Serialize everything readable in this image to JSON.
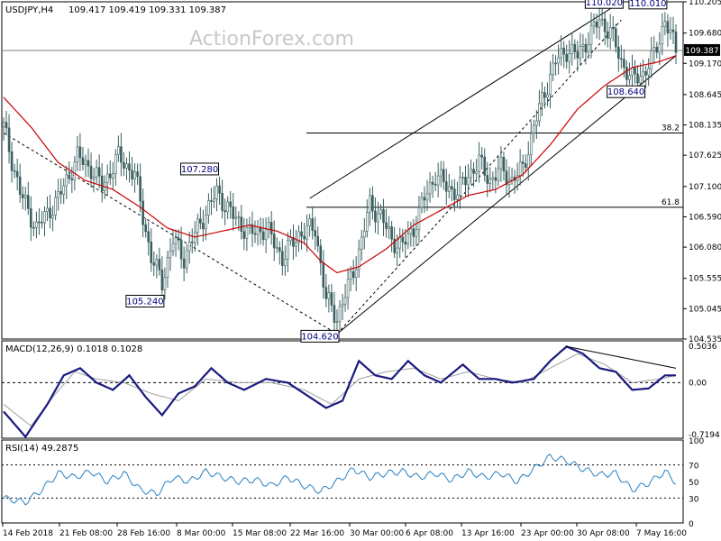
{
  "header": {
    "symbol": "USDJPY,H4",
    "ohlc": "109.417 109.419 109.331 109.387",
    "watermark": "ActionForex.com"
  },
  "chart_data": [
    {
      "type": "candlestick",
      "panel": "price",
      "y_ticks": [
        "110.205",
        "109.680",
        "109.170",
        "108.645",
        "108.135",
        "107.625",
        "107.100",
        "106.590",
        "106.080",
        "105.555",
        "105.045",
        "104.535"
      ],
      "ylim": [
        104.535,
        110.205
      ],
      "current_price": "109.387",
      "x_ticks": [
        "14 Feb 2018",
        "21 Feb 08:00",
        "28 Feb 16:00",
        "8 Mar 00:00",
        "15 Mar 08:00",
        "22 Mar 16:00",
        "30 Mar 00:00",
        "6 Apr 08:00",
        "13 Apr 16:00",
        "23 Apr 00:00",
        "30 Apr 08:00",
        "7 May 16:00"
      ],
      "price_labels": [
        {
          "text": "110.020",
          "value": 110.02
        },
        {
          "text": "110.010",
          "value": 110.01
        },
        {
          "text": "107.280",
          "value": 107.28
        },
        {
          "text": "105.240",
          "value": 105.24
        },
        {
          "text": "104.620",
          "value": 104.62
        },
        {
          "text": "108.640",
          "value": 108.64
        }
      ],
      "fib_levels": [
        {
          "label": "38.2",
          "value": 108.0
        },
        {
          "label": "61.8",
          "value": 106.75
        }
      ],
      "close_path": [
        [
          0,
          108.1
        ],
        [
          6,
          107.0
        ],
        [
          12,
          106.4
        ],
        [
          20,
          106.9
        ],
        [
          27,
          107.6
        ],
        [
          32,
          107.4
        ],
        [
          36,
          107.1
        ],
        [
          42,
          107.6
        ],
        [
          48,
          107.3
        ],
        [
          54,
          105.9
        ],
        [
          58,
          105.5
        ],
        [
          62,
          106.2
        ],
        [
          66,
          105.9
        ],
        [
          72,
          106.5
        ],
        [
          78,
          107.0
        ],
        [
          84,
          106.6
        ],
        [
          90,
          106.3
        ],
        [
          96,
          106.4
        ],
        [
          102,
          105.9
        ],
        [
          108,
          106.3
        ],
        [
          114,
          106.4
        ],
        [
          118,
          105.2
        ],
        [
          122,
          104.9
        ],
        [
          126,
          105.4
        ],
        [
          130,
          106.0
        ],
        [
          134,
          106.8
        ],
        [
          138,
          106.6
        ],
        [
          142,
          106.2
        ],
        [
          146,
          106.1
        ],
        [
          150,
          106.4
        ],
        [
          154,
          106.9
        ],
        [
          158,
          107.3
        ],
        [
          162,
          107.1
        ],
        [
          166,
          107.0
        ],
        [
          170,
          107.3
        ],
        [
          174,
          107.5
        ],
        [
          178,
          107.2
        ],
        [
          182,
          107.4
        ],
        [
          186,
          107.2
        ],
        [
          190,
          107.4
        ],
        [
          194,
          108.1
        ],
        [
          198,
          108.7
        ],
        [
          202,
          109.2
        ],
        [
          206,
          109.4
        ],
        [
          210,
          109.3
        ],
        [
          214,
          109.6
        ],
        [
          218,
          109.9
        ],
        [
          222,
          109.7
        ],
        [
          226,
          109.2
        ],
        [
          230,
          108.9
        ],
        [
          234,
          109.0
        ],
        [
          238,
          109.3
        ],
        [
          242,
          109.9
        ],
        [
          246,
          109.39
        ]
      ],
      "ma_path": [
        [
          0,
          108.6
        ],
        [
          10,
          108.1
        ],
        [
          20,
          107.5
        ],
        [
          30,
          107.2
        ],
        [
          40,
          107.05
        ],
        [
          50,
          106.75
        ],
        [
          60,
          106.4
        ],
        [
          70,
          106.25
        ],
        [
          80,
          106.35
        ],
        [
          90,
          106.45
        ],
        [
          100,
          106.35
        ],
        [
          110,
          106.15
        ],
        [
          116,
          105.85
        ],
        [
          122,
          105.65
        ],
        [
          130,
          105.75
        ],
        [
          140,
          106.05
        ],
        [
          150,
          106.45
        ],
        [
          160,
          106.7
        ],
        [
          170,
          106.95
        ],
        [
          180,
          107.05
        ],
        [
          190,
          107.3
        ],
        [
          200,
          107.8
        ],
        [
          210,
          108.4
        ],
        [
          220,
          108.8
        ],
        [
          230,
          109.1
        ],
        [
          240,
          109.2
        ],
        [
          246,
          109.3
        ]
      ]
    },
    {
      "type": "line",
      "panel": "macd",
      "label": "MACD(12,26,9) 0.1018 0.1028",
      "y_ticks": [
        "0.5036",
        "0.00",
        "-0.7194"
      ],
      "ylim": [
        -0.7194,
        0.5036
      ],
      "macd": [
        [
          0,
          -0.4
        ],
        [
          8,
          -0.75
        ],
        [
          16,
          -0.3
        ],
        [
          22,
          0.1
        ],
        [
          28,
          0.2
        ],
        [
          34,
          0.0
        ],
        [
          40,
          -0.1
        ],
        [
          46,
          0.1
        ],
        [
          52,
          -0.2
        ],
        [
          58,
          -0.45
        ],
        [
          64,
          -0.15
        ],
        [
          70,
          -0.05
        ],
        [
          76,
          0.2
        ],
        [
          82,
          0.0
        ],
        [
          88,
          -0.1
        ],
        [
          96,
          0.05
        ],
        [
          104,
          0.0
        ],
        [
          112,
          -0.2
        ],
        [
          118,
          -0.35
        ],
        [
          124,
          -0.25
        ],
        [
          130,
          0.3
        ],
        [
          136,
          0.1
        ],
        [
          142,
          0.05
        ],
        [
          148,
          0.3
        ],
        [
          154,
          0.1
        ],
        [
          160,
          0.0
        ],
        [
          168,
          0.25
        ],
        [
          174,
          0.05
        ],
        [
          180,
          0.05
        ],
        [
          186,
          0.0
        ],
        [
          194,
          0.05
        ],
        [
          200,
          0.3
        ],
        [
          206,
          0.5
        ],
        [
          212,
          0.4
        ],
        [
          218,
          0.2
        ],
        [
          224,
          0.15
        ],
        [
          230,
          -0.1
        ],
        [
          236,
          -0.08
        ],
        [
          242,
          0.1
        ],
        [
          246,
          0.1
        ]
      ],
      "signal": [
        [
          0,
          -0.3
        ],
        [
          10,
          -0.6
        ],
        [
          18,
          -0.2
        ],
        [
          26,
          0.15
        ],
        [
          34,
          0.05
        ],
        [
          44,
          0.0
        ],
        [
          54,
          -0.15
        ],
        [
          64,
          -0.25
        ],
        [
          74,
          0.05
        ],
        [
          86,
          0.0
        ],
        [
          98,
          0.0
        ],
        [
          110,
          -0.1
        ],
        [
          120,
          -0.3
        ],
        [
          130,
          0.05
        ],
        [
          140,
          0.15
        ],
        [
          150,
          0.2
        ],
        [
          160,
          0.05
        ],
        [
          170,
          0.15
        ],
        [
          180,
          0.05
        ],
        [
          190,
          0.0
        ],
        [
          200,
          0.2
        ],
        [
          210,
          0.4
        ],
        [
          220,
          0.25
        ],
        [
          230,
          0.0
        ],
        [
          240,
          0.05
        ],
        [
          246,
          0.1
        ]
      ]
    },
    {
      "type": "line",
      "panel": "rsi",
      "label": "RSI(14) 49.2875",
      "y_ticks": [
        "100",
        "70",
        "50",
        "30",
        "0"
      ],
      "ylim": [
        0,
        100
      ],
      "rsi": [
        [
          0,
          30
        ],
        [
          8,
          25
        ],
        [
          14,
          40
        ],
        [
          20,
          60
        ],
        [
          26,
          55
        ],
        [
          32,
          62
        ],
        [
          38,
          50
        ],
        [
          44,
          60
        ],
        [
          50,
          40
        ],
        [
          56,
          35
        ],
        [
          62,
          55
        ],
        [
          68,
          50
        ],
        [
          74,
          62
        ],
        [
          80,
          55
        ],
        [
          86,
          50
        ],
        [
          92,
          52
        ],
        [
          98,
          45
        ],
        [
          104,
          55
        ],
        [
          110,
          45
        ],
        [
          116,
          38
        ],
        [
          122,
          50
        ],
        [
          128,
          65
        ],
        [
          134,
          55
        ],
        [
          140,
          60
        ],
        [
          146,
          62
        ],
        [
          152,
          55
        ],
        [
          158,
          60
        ],
        [
          164,
          52
        ],
        [
          170,
          62
        ],
        [
          176,
          55
        ],
        [
          182,
          60
        ],
        [
          188,
          50
        ],
        [
          194,
          65
        ],
        [
          200,
          80
        ],
        [
          206,
          75
        ],
        [
          212,
          65
        ],
        [
          218,
          58
        ],
        [
          224,
          60
        ],
        [
          230,
          40
        ],
        [
          236,
          48
        ],
        [
          242,
          62
        ],
        [
          246,
          49
        ]
      ]
    }
  ]
}
